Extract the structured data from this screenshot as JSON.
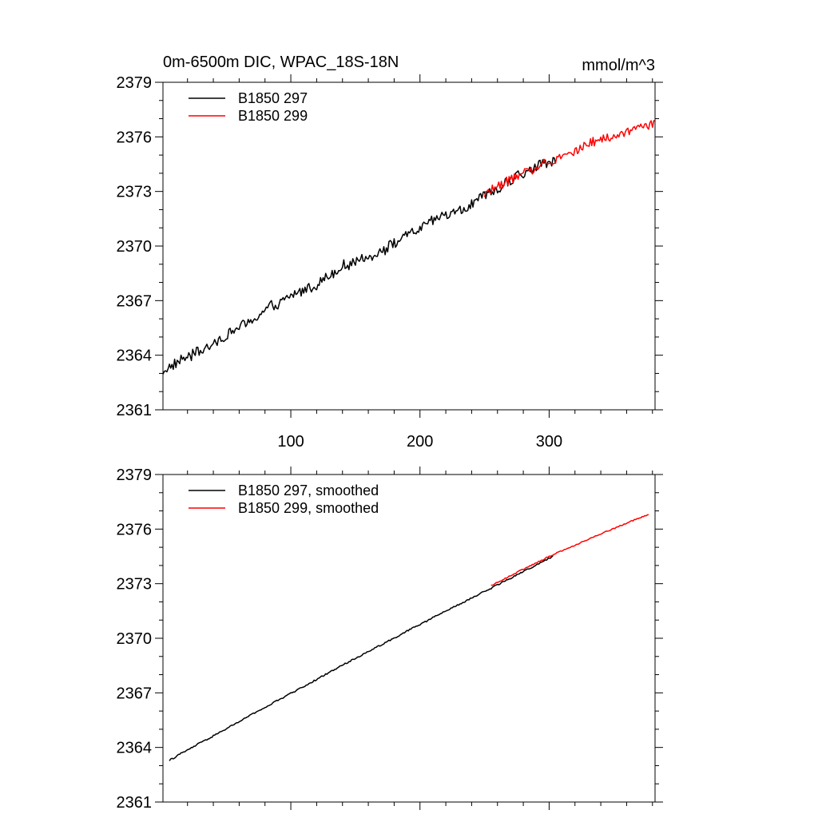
{
  "chart_data": [
    {
      "type": "line",
      "title": "0m-6500m DIC, WPAC_18S-18N",
      "units": "mmol/m^3",
      "xlabel": "",
      "ylabel": "",
      "xlim": [
        1,
        382
      ],
      "ylim": [
        2361,
        2379
      ],
      "x_ticks": [
        100,
        200,
        300
      ],
      "x_tick_labels": [
        "100",
        "200",
        "300"
      ],
      "y_ticks": [
        2361,
        2364,
        2367,
        2370,
        2373,
        2376,
        2379
      ],
      "y_tick_labels": [
        "2361",
        "2364",
        "2367",
        "2370",
        "2373",
        "2376",
        "2379"
      ],
      "legend_position": "top-left",
      "series": [
        {
          "name": "B1850 297",
          "color": "#000000",
          "x_start": 1,
          "x_end": 305,
          "y_start": 2363.1,
          "y_end": 2374.8,
          "noise": 0.35
        },
        {
          "name": "B1850 299",
          "color": "#ff0000",
          "x_start": 250,
          "x_end": 382,
          "y_start": 2372.9,
          "y_end": 2376.9,
          "noise": 0.3
        }
      ]
    },
    {
      "type": "line",
      "title": "",
      "units": "",
      "xlabel": "",
      "ylabel": "",
      "xlim": [
        1,
        382
      ],
      "ylim": [
        2361,
        2379
      ],
      "x_ticks": [
        100,
        200,
        300
      ],
      "x_tick_labels": [],
      "y_ticks": [
        2361,
        2364,
        2367,
        2370,
        2373,
        2376,
        2379
      ],
      "y_tick_labels": [
        "2361",
        "2364",
        "2367",
        "2370",
        "2373",
        "2376",
        "2379"
      ],
      "legend_position": "top-left",
      "series": [
        {
          "name": "B1850 297, smoothed",
          "color": "#000000",
          "x_start": 6,
          "x_end": 303,
          "y_start": 2363.3,
          "y_end": 2374.5,
          "noise": 0.05
        },
        {
          "name": "B1850 299, smoothed",
          "color": "#ff0000",
          "x_start": 255,
          "x_end": 377,
          "y_start": 2372.9,
          "y_end": 2376.8,
          "noise": 0.04
        }
      ]
    }
  ]
}
